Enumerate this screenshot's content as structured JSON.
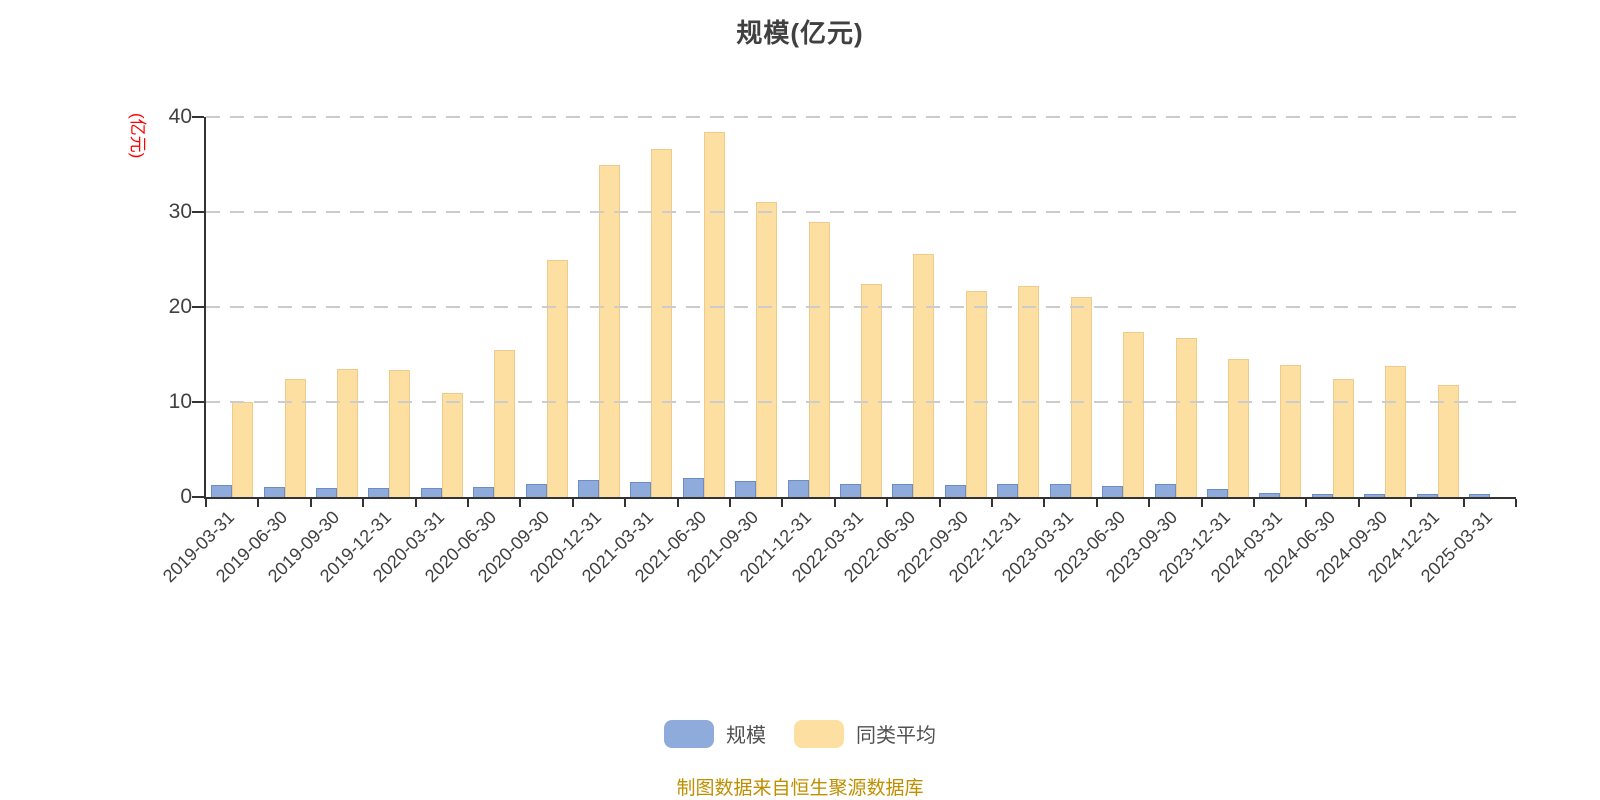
{
  "title": "规模(亿元)",
  "y_axis": {
    "unit_label": "(亿元)",
    "tick_values": [
      0,
      10,
      20,
      30,
      40
    ]
  },
  "footer_note": "制图数据来自恒生聚源数据库",
  "colors": {
    "scale_bar_fill": "#8EABDC",
    "scale_bar_border": "#6A8CC7",
    "average_bar_fill": "#FDDFA2",
    "average_bar_border": "#EDCB8D",
    "axis_line": "#333333",
    "gridline": "#CCCCCC",
    "title_text": "#404040",
    "axis_label_text": "#404040",
    "unit_label_text": "#FF0000",
    "legend_text": "#515151",
    "footer_text": "#BF8F00"
  },
  "chart_data": {
    "type": "bar",
    "title": "规模(亿元)",
    "xlabel": "",
    "ylabel": "(亿元)",
    "ylim": [
      0,
      40
    ],
    "y_ticks": [
      0,
      10,
      20,
      30,
      40
    ],
    "grid": "horizontal dashed",
    "legend_position": "bottom",
    "categories": [
      "2019-03-31",
      "2019-06-30",
      "2019-09-30",
      "2019-12-31",
      "2020-03-31",
      "2020-06-30",
      "2020-09-30",
      "2020-12-31",
      "2021-03-31",
      "2021-06-30",
      "2021-09-30",
      "2021-12-31",
      "2022-03-31",
      "2022-06-30",
      "2022-09-30",
      "2022-12-31",
      "2023-03-31",
      "2023-06-30",
      "2023-09-30",
      "2023-12-31",
      "2024-03-31",
      "2024-06-30",
      "2024-09-30",
      "2024-12-31",
      "2025-03-31"
    ],
    "series": [
      {
        "name": "规模",
        "values": [
          1.3,
          1.1,
          1.0,
          1.0,
          1.0,
          1.1,
          1.4,
          1.8,
          1.6,
          2.0,
          1.7,
          1.8,
          1.4,
          1.4,
          1.3,
          1.4,
          1.4,
          1.2,
          1.4,
          0.8,
          0.4,
          0.3,
          0.3,
          0.3,
          0.3
        ]
      },
      {
        "name": "同类平均",
        "values": [
          10.0,
          12.4,
          13.5,
          13.4,
          11.0,
          15.5,
          25.0,
          34.9,
          36.6,
          38.4,
          31.1,
          29.0,
          22.4,
          25.6,
          21.7,
          22.2,
          21.1,
          17.4,
          16.7,
          14.5,
          13.9,
          12.4,
          13.8,
          11.8,
          0
        ]
      }
    ]
  }
}
